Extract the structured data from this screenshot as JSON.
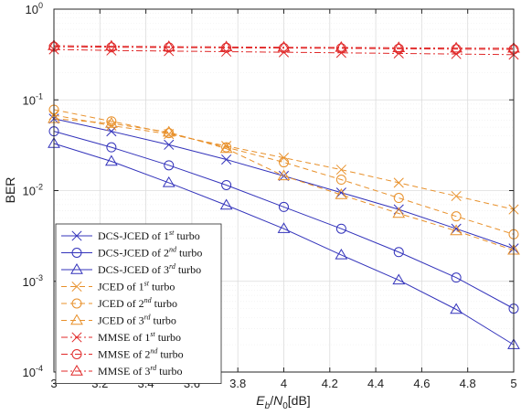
{
  "chart_data": {
    "type": "line",
    "xlabel": "Eb/N0[dB]",
    "ylabel": "BER",
    "yscale": "log",
    "xlim": [
      3,
      5
    ],
    "ylim": [
      0.0001,
      1
    ],
    "grid": true,
    "legend_position": "bottom-left",
    "x_ticks": [
      "3",
      "3.2",
      "3.4",
      "3.6",
      "3.8",
      "4",
      "4.2",
      "4.4",
      "4.6",
      "4.8",
      "5"
    ],
    "y_ticks": [
      {
        "value": 1,
        "base": "10",
        "exp": "0"
      },
      {
        "value": 0.1,
        "base": "10",
        "exp": "-1"
      },
      {
        "value": 0.01,
        "base": "10",
        "exp": "-2"
      },
      {
        "value": 0.001,
        "base": "10",
        "exp": "-3"
      },
      {
        "value": 0.0001,
        "base": "10",
        "exp": "-4"
      }
    ],
    "x": [
      3,
      3.25,
      3.5,
      3.75,
      4,
      4.25,
      4.5,
      4.75,
      5
    ],
    "series": [
      {
        "name": "DCS-JCED of 1st turbo",
        "name_parts": [
          "DCS-JCED of 1",
          "st",
          " turbo"
        ],
        "color": "#3333bb",
        "dash": "solid",
        "marker": "x",
        "values": [
          0.062,
          0.045,
          0.032,
          0.022,
          0.0145,
          0.0095,
          0.0062,
          0.0038,
          0.0023
        ]
      },
      {
        "name": "DCS-JCED of 2nd turbo",
        "name_parts": [
          "DCS-JCED of 2",
          "nd",
          " turbo"
        ],
        "color": "#3333bb",
        "dash": "solid",
        "marker": "circle",
        "values": [
          0.045,
          0.03,
          0.019,
          0.0115,
          0.0066,
          0.0038,
          0.0021,
          0.0011,
          0.0005
        ]
      },
      {
        "name": "DCS-JCED of 3rd turbo",
        "name_parts": [
          "DCS-JCED of 3",
          "rd",
          " turbo"
        ],
        "color": "#3333bb",
        "dash": "solid",
        "marker": "triangle",
        "values": [
          0.033,
          0.021,
          0.0122,
          0.0069,
          0.0038,
          0.00195,
          0.00103,
          0.00049,
          0.0002
        ]
      },
      {
        "name": "JCED of 1st turbo",
        "name_parts": [
          "JCED of 1",
          "st",
          " turbo"
        ],
        "color": "#e8902a",
        "dash": "dashed",
        "marker": "x",
        "values": [
          0.068,
          0.052,
          0.042,
          0.031,
          0.023,
          0.017,
          0.0122,
          0.0087,
          0.0062
        ]
      },
      {
        "name": "JCED of 2nd turbo",
        "name_parts": [
          "JCED of 2",
          "nd",
          " turbo"
        ],
        "color": "#e8902a",
        "dash": "dashed",
        "marker": "circle",
        "values": [
          0.078,
          0.058,
          0.043,
          0.03,
          0.0205,
          0.0132,
          0.0083,
          0.0052,
          0.0033
        ]
      },
      {
        "name": "JCED of 3rd turbo",
        "name_parts": [
          "JCED of 3",
          "rd",
          " turbo"
        ],
        "color": "#e8902a",
        "dash": "dashed",
        "marker": "triangle",
        "values": [
          0.062,
          0.055,
          0.044,
          0.029,
          0.0145,
          0.009,
          0.0056,
          0.0036,
          0.0022
        ]
      },
      {
        "name": "MMSE of 1st turbo",
        "name_parts": [
          "MMSE of 1",
          "st",
          " turbo"
        ],
        "color": "#e02828",
        "dash": "dashdot",
        "marker": "x",
        "values": [
          0.36,
          0.35,
          0.345,
          0.34,
          0.335,
          0.33,
          0.325,
          0.32,
          0.315
        ]
      },
      {
        "name": "MMSE of 2nd turbo",
        "name_parts": [
          "MMSE of 2",
          "nd",
          " turbo"
        ],
        "color": "#e02828",
        "dash": "dashdot",
        "marker": "circle",
        "values": [
          0.385,
          0.38,
          0.378,
          0.375,
          0.372,
          0.37,
          0.366,
          0.362,
          0.36
        ]
      },
      {
        "name": "MMSE of 3rd turbo",
        "name_parts": [
          "MMSE of 3",
          "rd",
          " turbo"
        ],
        "color": "#e02828",
        "dash": "dashdot",
        "marker": "triangle",
        "values": [
          0.395,
          0.39,
          0.385,
          0.383,
          0.38,
          0.378,
          0.375,
          0.372,
          0.37
        ]
      }
    ]
  }
}
